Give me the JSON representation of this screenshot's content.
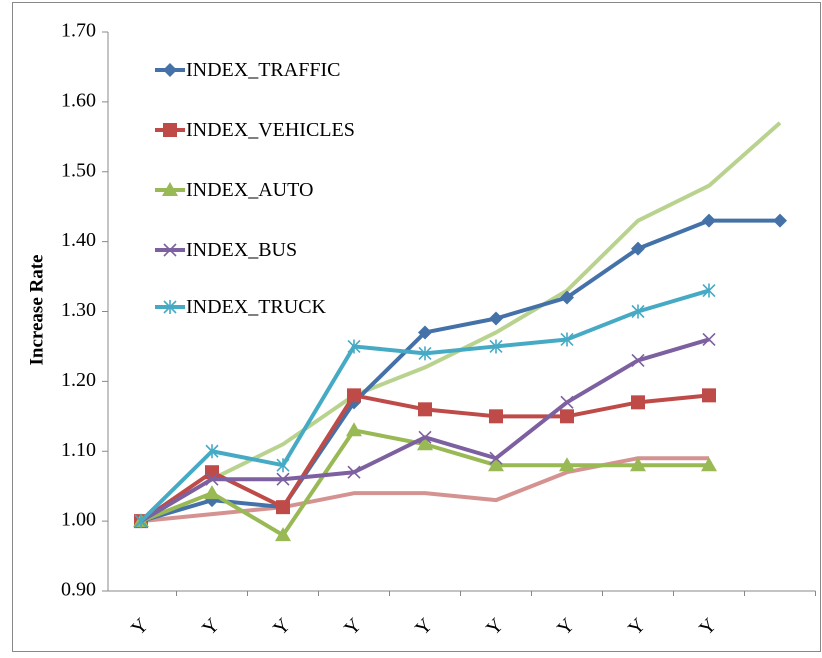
{
  "chart_data": {
    "type": "line",
    "y_label": "Increase Rate",
    "categories": [
      "Y",
      "Y",
      "Y",
      "Y",
      "Y",
      "Y",
      "Y",
      "Y",
      "Y",
      null
    ],
    "ylim": [
      0.9,
      1.7
    ],
    "yticks": [
      {
        "value": 0.9,
        "label": "0.90"
      },
      {
        "value": 1.0,
        "label": "1.00"
      },
      {
        "value": 1.1,
        "label": "1.10"
      },
      {
        "value": 1.2,
        "label": "1.20"
      },
      {
        "value": 1.3,
        "label": "1.30"
      },
      {
        "value": 1.4,
        "label": "1.40"
      },
      {
        "value": 1.5,
        "label": "1.50"
      },
      {
        "value": 1.6,
        "label": "1.60"
      },
      {
        "value": 1.7,
        "label": "1.70"
      }
    ],
    "series": [
      {
        "name": "INDEX_TRAFFIC",
        "color": "#4472a8",
        "marker": "diamond",
        "values": [
          1.0,
          1.03,
          1.02,
          1.17,
          1.27,
          1.29,
          1.32,
          1.39,
          1.43,
          1.43
        ]
      },
      {
        "name": "INDEX_VEHICLES",
        "color": "#be4b48",
        "marker": "square",
        "values": [
          1.0,
          1.07,
          1.02,
          1.18,
          1.16,
          1.15,
          1.15,
          1.17,
          1.18,
          null
        ]
      },
      {
        "name": "INDEX_AUTO",
        "color": "#98b954",
        "marker": "triangle",
        "values": [
          1.0,
          1.04,
          0.98,
          1.13,
          1.11,
          1.08,
          1.08,
          1.08,
          1.08,
          null
        ]
      },
      {
        "name": "INDEX_BUS",
        "color": "#7d60a0",
        "marker": "x",
        "values": [
          1.0,
          1.06,
          1.06,
          1.07,
          1.12,
          1.09,
          1.17,
          1.23,
          1.26,
          null
        ]
      },
      {
        "name": "INDEX_TRUCK",
        "color": "#46aac5",
        "marker": "star",
        "values": [
          1.0,
          1.1,
          1.08,
          1.25,
          1.24,
          1.25,
          1.26,
          1.3,
          1.33,
          null
        ]
      },
      {
        "color": "#b9d38f",
        "marker": "none",
        "values": [
          1.0,
          1.06,
          1.11,
          1.18,
          1.22,
          1.27,
          1.33,
          1.43,
          1.48,
          1.57
        ]
      },
      {
        "color": "#d49391",
        "marker": "none",
        "values": [
          1.0,
          1.01,
          1.02,
          1.04,
          1.04,
          1.03,
          1.07,
          1.09,
          1.09,
          null
        ]
      }
    ]
  }
}
